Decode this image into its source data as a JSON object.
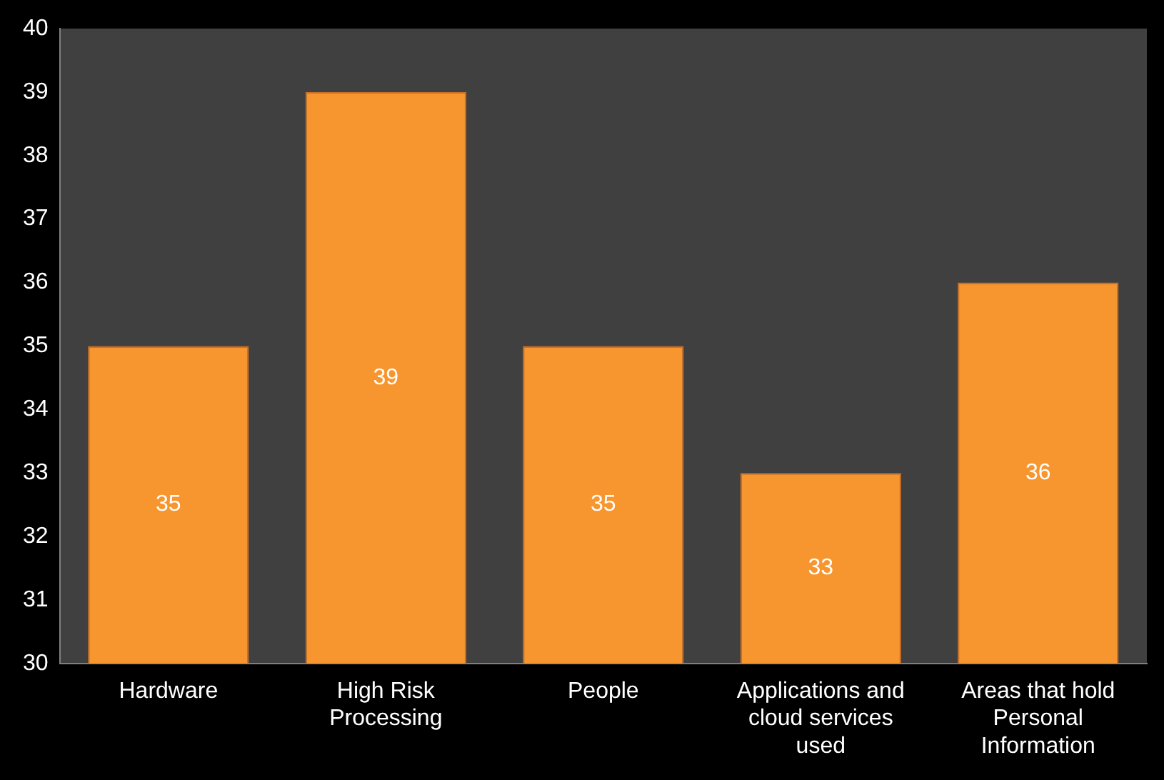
{
  "chart_data": {
    "type": "bar",
    "categories": [
      "Hardware",
      "High Risk Processing",
      "People",
      "Applications and cloud services used",
      "Areas that hold Personal Information"
    ],
    "values": [
      35,
      39,
      35,
      33,
      36
    ],
    "color": "#f7962f",
    "ylim": [
      30,
      40
    ],
    "yticks": [
      30,
      31,
      32,
      33,
      34,
      35,
      36,
      37,
      38,
      39,
      40
    ],
    "grid": false,
    "data_labels": true
  }
}
